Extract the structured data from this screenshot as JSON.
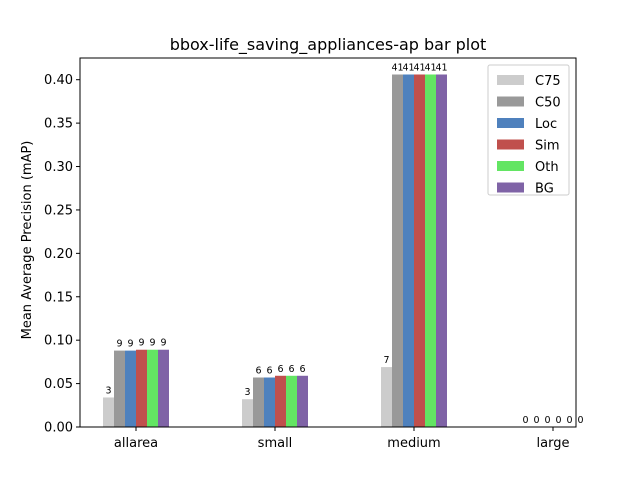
{
  "chart_data": {
    "type": "bar",
    "title": "bbox-life_saving_appliances-ap bar plot",
    "xlabel": "",
    "ylabel": "Mean Average Precision (mAP)",
    "categories": [
      "allarea",
      "small",
      "medium",
      "large"
    ],
    "ylim": [
      0,
      0.425
    ],
    "yticks": [
      0.0,
      0.05,
      0.1,
      0.15,
      0.2,
      0.25,
      0.3,
      0.35,
      0.4
    ],
    "ytick_labels": [
      "0.00",
      "0.05",
      "0.10",
      "0.15",
      "0.20",
      "0.25",
      "0.30",
      "0.35",
      "0.40"
    ],
    "grid": false,
    "legend_position": "top-right",
    "series": [
      {
        "name": "C75",
        "color": "#cccccc",
        "values": [
          0.034,
          0.032,
          0.069,
          0.0
        ],
        "labels": [
          "3",
          "3",
          "7",
          "0"
        ]
      },
      {
        "name": "C50",
        "color": "#999999",
        "values": [
          0.088,
          0.057,
          0.406,
          0.0
        ],
        "labels": [
          "9",
          "6",
          "41",
          "0"
        ]
      },
      {
        "name": "Loc",
        "color": "#4f81bd",
        "values": [
          0.088,
          0.057,
          0.406,
          0.0
        ],
        "labels": [
          "9",
          "6",
          "41",
          "0"
        ]
      },
      {
        "name": "Sim",
        "color": "#c0504d",
        "values": [
          0.089,
          0.059,
          0.406,
          0.0
        ],
        "labels": [
          "9",
          "6",
          "41",
          "0"
        ]
      },
      {
        "name": "Oth",
        "color": "#63e563",
        "values": [
          0.089,
          0.059,
          0.406,
          0.0
        ],
        "labels": [
          "9",
          "6",
          "41",
          "0"
        ]
      },
      {
        "name": "BG",
        "color": "#7f63a6",
        "values": [
          0.089,
          0.059,
          0.406,
          0.0
        ],
        "labels": [
          "9",
          "6",
          "41",
          "0"
        ]
      }
    ]
  }
}
